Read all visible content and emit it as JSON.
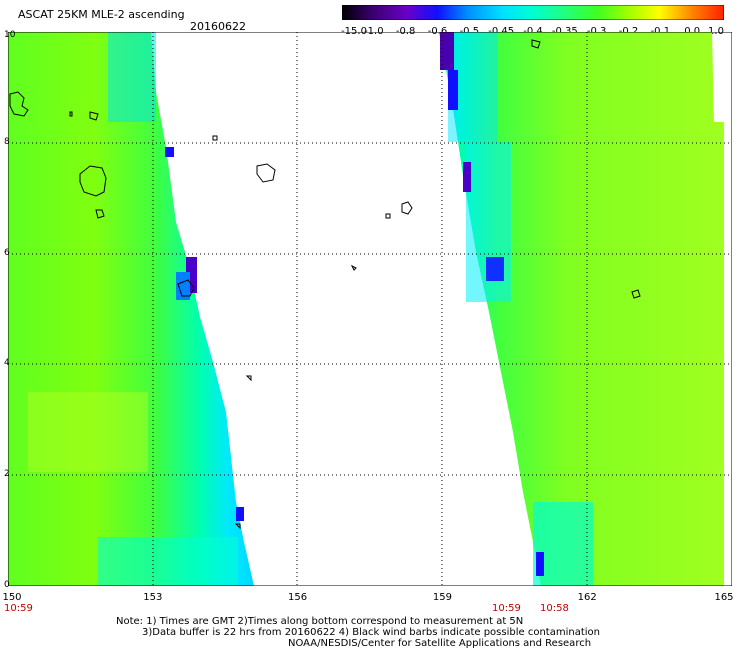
{
  "title": "ASCAT 25KM MLE-2 ascending",
  "date": "20160622",
  "colorbar": {
    "labels": [
      "-15.0",
      "-1.0",
      "-0.8",
      "-0.6",
      "-0.5",
      "-0.45",
      "-0.4",
      "-0.35",
      "-0.3",
      "-0.2",
      "-0.1",
      "0.0",
      "1.0"
    ],
    "colors": [
      "#000000",
      "#3a0070",
      "#6a00c8",
      "#1010ff",
      "#0090ff",
      "#00e0ff",
      "#00ffd0",
      "#20ff80",
      "#40ff20",
      "#a0ff00",
      "#ffff00",
      "#ff8000",
      "#ff2000"
    ]
  },
  "axes": {
    "x_ticks": [
      "150",
      "153",
      "156",
      "159",
      "162",
      "165"
    ],
    "y_ticks": [
      "0",
      "2",
      "4",
      "6",
      "8",
      "10"
    ],
    "x_range": [
      150,
      165
    ],
    "y_range": [
      0,
      10
    ]
  },
  "pass_times": {
    "left": "10:59",
    "right_a": "10:59",
    "right_b": "10:58"
  },
  "notes": {
    "line1": "Note: 1) Times are GMT 2)Times along bottom correspond to measurement at 5N",
    "line2": "3)Data buffer is 22 hrs from 20160622 4) Black wind barbs indicate possible contamination",
    "line3": "NOAA/NESDIS/Center for Satellite Applications and Research"
  },
  "colors": {
    "swath_green": "#60ff20",
    "swath_yellowgreen": "#a0ff20",
    "swath_cyan": "#00ffd0",
    "swath_blue": "#1060ff",
    "swath_purple": "#6000c0",
    "time_label": "#c00000"
  }
}
